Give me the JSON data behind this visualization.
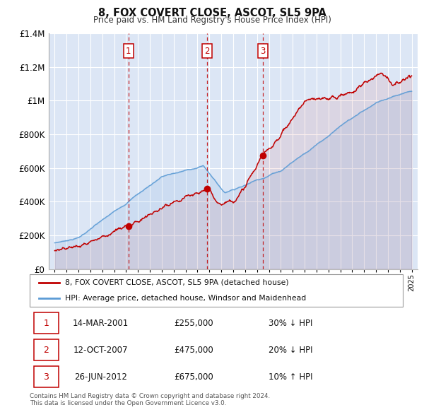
{
  "title": "8, FOX COVERT CLOSE, ASCOT, SL5 9PA",
  "subtitle": "Price paid vs. HM Land Registry's House Price Index (HPI)",
  "ylim": [
    0,
    1400000
  ],
  "yticks": [
    0,
    200000,
    400000,
    600000,
    800000,
    1000000,
    1200000,
    1400000
  ],
  "xlim_start": 1994.5,
  "xlim_end": 2025.5,
  "bg_color": "#dce6f5",
  "fig_bg": "#ffffff",
  "red_color": "#c00000",
  "blue_color": "#5b9bd5",
  "dashed_color": "#c00000",
  "transactions": [
    {
      "label": "1",
      "year": 2001.2,
      "value": 255000,
      "date": "14-MAR-2001",
      "price": "£255,000",
      "pct": "30%",
      "dir": "↓",
      "rel": "HPI"
    },
    {
      "label": "2",
      "year": 2007.79,
      "value": 475000,
      "date": "12-OCT-2007",
      "price": "£475,000",
      "pct": "20%",
      "dir": "↓",
      "rel": "HPI"
    },
    {
      "label": "3",
      "year": 2012.49,
      "value": 675000,
      "date": "26-JUN-2012",
      "price": "£675,000",
      "pct": "10%",
      "dir": "↑",
      "rel": "HPI"
    }
  ],
  "legend_line1": "8, FOX COVERT CLOSE, ASCOT, SL5 9PA (detached house)",
  "legend_line2": "HPI: Average price, detached house, Windsor and Maidenhead",
  "footnote1": "Contains HM Land Registry data © Crown copyright and database right 2024.",
  "footnote2": "This data is licensed under the Open Government Licence v3.0."
}
